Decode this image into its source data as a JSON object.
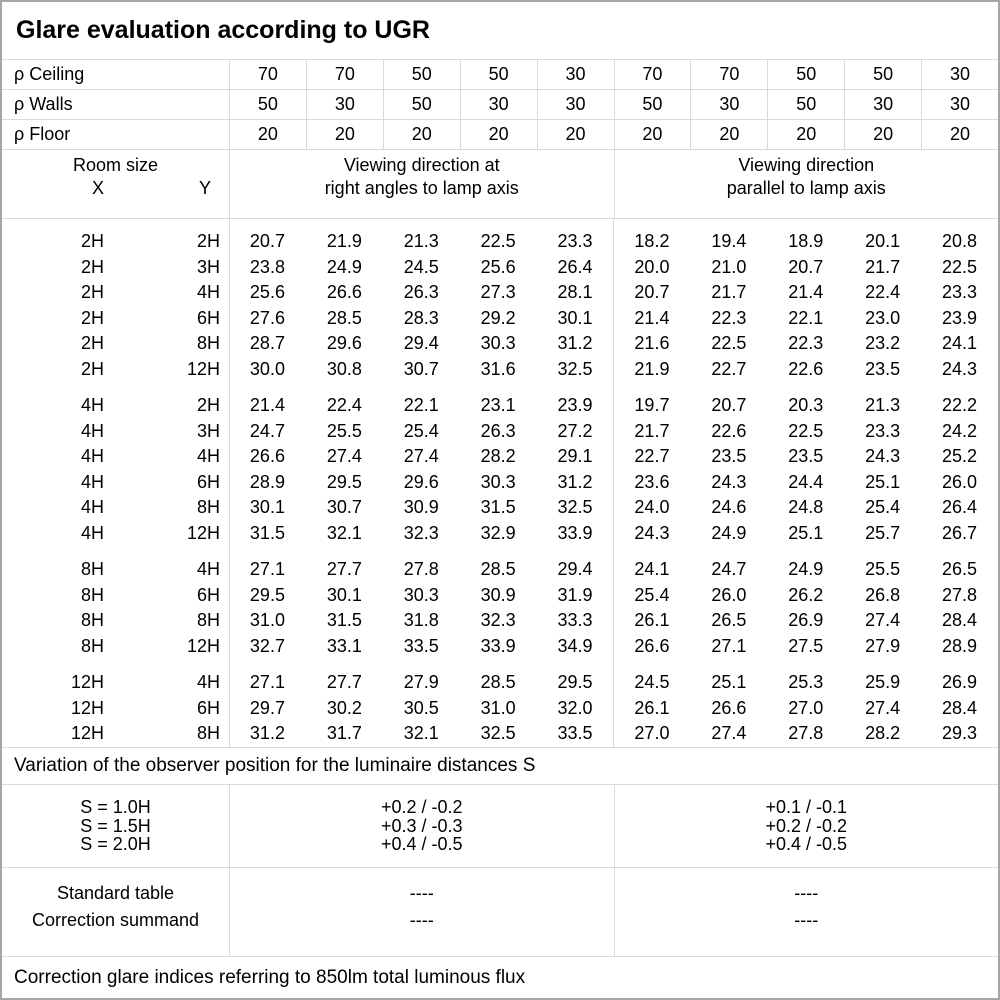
{
  "title": "Glare evaluation according to UGR",
  "reflectances": {
    "rows": [
      {
        "label": "ρ Ceiling",
        "values": [
          "70",
          "70",
          "50",
          "50",
          "30",
          "70",
          "70",
          "50",
          "50",
          "30"
        ]
      },
      {
        "label": "ρ Walls",
        "values": [
          "50",
          "30",
          "50",
          "30",
          "30",
          "50",
          "30",
          "50",
          "30",
          "30"
        ]
      },
      {
        "label": "ρ Floor",
        "values": [
          "20",
          "20",
          "20",
          "20",
          "20",
          "20",
          "20",
          "20",
          "20",
          "20"
        ]
      }
    ]
  },
  "header": {
    "room_size": "Room size",
    "x": "X",
    "y": "Y",
    "left_line1": "Viewing direction at",
    "left_line2": "right angles to lamp axis",
    "right_line1": "Viewing direction",
    "right_line2": "parallel to lamp axis"
  },
  "main": {
    "groups": [
      {
        "rows": [
          {
            "x": "2H",
            "y": "2H",
            "v": [
              "20.7",
              "21.9",
              "21.3",
              "22.5",
              "23.3",
              "18.2",
              "19.4",
              "18.9",
              "20.1",
              "20.8"
            ]
          },
          {
            "x": "2H",
            "y": "3H",
            "v": [
              "23.8",
              "24.9",
              "24.5",
              "25.6",
              "26.4",
              "20.0",
              "21.0",
              "20.7",
              "21.7",
              "22.5"
            ]
          },
          {
            "x": "2H",
            "y": "4H",
            "v": [
              "25.6",
              "26.6",
              "26.3",
              "27.3",
              "28.1",
              "20.7",
              "21.7",
              "21.4",
              "22.4",
              "23.3"
            ]
          },
          {
            "x": "2H",
            "y": "6H",
            "v": [
              "27.6",
              "28.5",
              "28.3",
              "29.2",
              "30.1",
              "21.4",
              "22.3",
              "22.1",
              "23.0",
              "23.9"
            ]
          },
          {
            "x": "2H",
            "y": "8H",
            "v": [
              "28.7",
              "29.6",
              "29.4",
              "30.3",
              "31.2",
              "21.6",
              "22.5",
              "22.3",
              "23.2",
              "24.1"
            ]
          },
          {
            "x": "2H",
            "y": "12H",
            "v": [
              "30.0",
              "30.8",
              "30.7",
              "31.6",
              "32.5",
              "21.9",
              "22.7",
              "22.6",
              "23.5",
              "24.3"
            ]
          }
        ]
      },
      {
        "rows": [
          {
            "x": "4H",
            "y": "2H",
            "v": [
              "21.4",
              "22.4",
              "22.1",
              "23.1",
              "23.9",
              "19.7",
              "20.7",
              "20.3",
              "21.3",
              "22.2"
            ]
          },
          {
            "x": "4H",
            "y": "3H",
            "v": [
              "24.7",
              "25.5",
              "25.4",
              "26.3",
              "27.2",
              "21.7",
              "22.6",
              "22.5",
              "23.3",
              "24.2"
            ]
          },
          {
            "x": "4H",
            "y": "4H",
            "v": [
              "26.6",
              "27.4",
              "27.4",
              "28.2",
              "29.1",
              "22.7",
              "23.5",
              "23.5",
              "24.3",
              "25.2"
            ]
          },
          {
            "x": "4H",
            "y": "6H",
            "v": [
              "28.9",
              "29.5",
              "29.6",
              "30.3",
              "31.2",
              "23.6",
              "24.3",
              "24.4",
              "25.1",
              "26.0"
            ]
          },
          {
            "x": "4H",
            "y": "8H",
            "v": [
              "30.1",
              "30.7",
              "30.9",
              "31.5",
              "32.5",
              "24.0",
              "24.6",
              "24.8",
              "25.4",
              "26.4"
            ]
          },
          {
            "x": "4H",
            "y": "12H",
            "v": [
              "31.5",
              "32.1",
              "32.3",
              "32.9",
              "33.9",
              "24.3",
              "24.9",
              "25.1",
              "25.7",
              "26.7"
            ]
          }
        ]
      },
      {
        "rows": [
          {
            "x": "8H",
            "y": "4H",
            "v": [
              "27.1",
              "27.7",
              "27.8",
              "28.5",
              "29.4",
              "24.1",
              "24.7",
              "24.9",
              "25.5",
              "26.5"
            ]
          },
          {
            "x": "8H",
            "y": "6H",
            "v": [
              "29.5",
              "30.1",
              "30.3",
              "30.9",
              "31.9",
              "25.4",
              "26.0",
              "26.2",
              "26.8",
              "27.8"
            ]
          },
          {
            "x": "8H",
            "y": "8H",
            "v": [
              "31.0",
              "31.5",
              "31.8",
              "32.3",
              "33.3",
              "26.1",
              "26.5",
              "26.9",
              "27.4",
              "28.4"
            ]
          },
          {
            "x": "8H",
            "y": "12H",
            "v": [
              "32.7",
              "33.1",
              "33.5",
              "33.9",
              "34.9",
              "26.6",
              "27.1",
              "27.5",
              "27.9",
              "28.9"
            ]
          }
        ]
      },
      {
        "rows": [
          {
            "x": "12H",
            "y": "4H",
            "v": [
              "27.1",
              "27.7",
              "27.9",
              "28.5",
              "29.5",
              "24.5",
              "25.1",
              "25.3",
              "25.9",
              "26.9"
            ]
          },
          {
            "x": "12H",
            "y": "6H",
            "v": [
              "29.7",
              "30.2",
              "30.5",
              "31.0",
              "32.0",
              "26.1",
              "26.6",
              "27.0",
              "27.4",
              "28.4"
            ]
          },
          {
            "x": "12H",
            "y": "8H",
            "v": [
              "31.2",
              "31.7",
              "32.1",
              "32.5",
              "33.5",
              "27.0",
              "27.4",
              "27.8",
              "28.2",
              "29.3"
            ]
          }
        ]
      }
    ]
  },
  "variation": {
    "note": "Variation of the observer position for the luminaire distances S",
    "rows": [
      {
        "label": "S = 1.0H",
        "left": "+0.2 / -0.2",
        "right": "+0.1 / -0.1"
      },
      {
        "label": "S = 1.5H",
        "left": "+0.3 / -0.3",
        "right": "+0.2 / -0.2"
      },
      {
        "label": "S = 2.0H",
        "left": "+0.4 / -0.5",
        "right": "+0.4 / -0.5"
      }
    ]
  },
  "summary": {
    "rows": [
      {
        "label": "Standard table",
        "left": "----",
        "right": "----"
      },
      {
        "label": "Correction summand",
        "left": "----",
        "right": "----"
      }
    ]
  },
  "footer": "Correction glare indices referring to 850lm total luminous flux"
}
